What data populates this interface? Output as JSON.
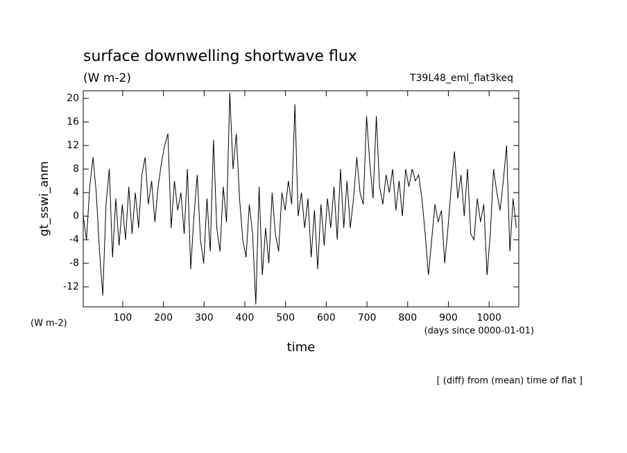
{
  "chart_data": {
    "type": "line",
    "title": "surface downwelling shortwave flux",
    "subtitle": "(W m-2)",
    "annotation": "T39L48_eml_flat3keq",
    "ylabel": "gt_sswi_anm",
    "yunit": "(W m-2)",
    "xunit": "(days since 0000-01-01)",
    "xlabel": "time",
    "footnote": "[ (diff) from (mean) time of flat ]",
    "color": "#000000",
    "xlim": [
      3,
      1073
    ],
    "ylim": [
      -15.4,
      21.3
    ],
    "xticks": [
      100,
      200,
      300,
      400,
      500,
      600,
      700,
      800,
      900,
      1000
    ],
    "yticks": [
      -12,
      -8,
      -4,
      0,
      4,
      8,
      12,
      16,
      20
    ],
    "x": [
      3,
      11,
      19,
      27,
      35,
      43,
      51,
      59,
      67,
      75,
      83,
      91,
      99,
      107,
      115,
      123,
      131,
      139,
      147,
      155,
      163,
      171,
      179,
      187,
      195,
      203,
      211,
      219,
      227,
      235,
      243,
      251,
      259,
      267,
      275,
      283,
      291,
      299,
      307,
      315,
      323,
      331,
      339,
      347,
      355,
      363,
      371,
      379,
      387,
      395,
      403,
      411,
      419,
      427,
      435,
      443,
      451,
      459,
      467,
      475,
      483,
      491,
      499,
      507,
      515,
      523,
      531,
      539,
      547,
      555,
      563,
      571,
      579,
      587,
      595,
      603,
      611,
      619,
      627,
      635,
      643,
      651,
      659,
      667,
      675,
      683,
      691,
      699,
      707,
      715,
      723,
      731,
      739,
      747,
      755,
      763,
      771,
      779,
      787,
      795,
      803,
      811,
      819,
      827,
      835,
      843,
      851,
      859,
      867,
      875,
      883,
      891,
      899,
      907,
      915,
      923,
      931,
      939,
      947,
      955,
      963,
      971,
      979,
      987,
      995,
      1003,
      1011,
      1019,
      1027,
      1035,
      1043,
      1051,
      1059,
      1067
    ],
    "values": [
      0,
      -4,
      5,
      10,
      4,
      -6,
      -13.5,
      2,
      8,
      -7,
      3,
      -5,
      2,
      -4,
      5,
      -3,
      4,
      -2,
      7,
      10,
      2,
      6,
      -1,
      5,
      9,
      12,
      14,
      -2,
      6,
      1,
      4,
      -3,
      8,
      -9,
      0,
      7,
      -4,
      -8,
      3,
      -6,
      13,
      -2,
      -6,
      5,
      -1,
      21,
      8,
      14,
      3,
      -4,
      -7,
      2,
      -3,
      -15,
      5,
      -10,
      -2,
      -8,
      4,
      -3,
      -6,
      4,
      1,
      6,
      2,
      19,
      0,
      4,
      -2,
      3,
      -7,
      1,
      -9,
      2,
      -5,
      3,
      -2,
      5,
      -4,
      8,
      -2,
      6,
      -2,
      3,
      10,
      4,
      2,
      17,
      9,
      3,
      17,
      5,
      2,
      7,
      4,
      8,
      1,
      6,
      0,
      8,
      5,
      8,
      6,
      7,
      3,
      -3,
      -10,
      -4,
      2,
      -1,
      1,
      -8,
      -2,
      5,
      11,
      3,
      7,
      0,
      8,
      -3,
      -4,
      3,
      -1,
      2,
      -10,
      -3,
      8,
      4,
      1,
      6,
      12,
      -6,
      3,
      -2
    ]
  }
}
